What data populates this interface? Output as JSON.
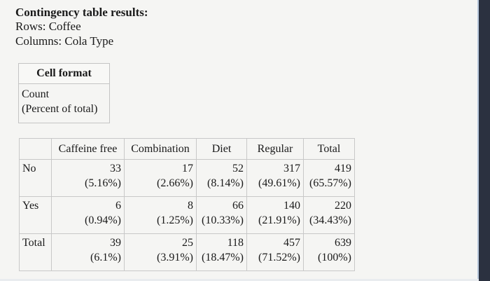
{
  "header": {
    "title": "Contingency table results:",
    "rows_line": "Rows: Coffee",
    "columns_line": "Columns: Cola Type"
  },
  "cell_format": {
    "title": "Cell format",
    "lines": [
      "Count",
      "(Percent of total)"
    ]
  },
  "table": {
    "columns": [
      "Caffeine free",
      "Combination",
      "Diet",
      "Regular",
      "Total"
    ],
    "rows": [
      {
        "label": "No",
        "cells": [
          {
            "count": 33,
            "percent": "(5.16%)"
          },
          {
            "count": 17,
            "percent": "(2.66%)"
          },
          {
            "count": 52,
            "percent": "(8.14%)"
          },
          {
            "count": 317,
            "percent": "(49.61%)"
          },
          {
            "count": 419,
            "percent": "(65.57%)"
          }
        ]
      },
      {
        "label": "Yes",
        "cells": [
          {
            "count": 6,
            "percent": "(0.94%)"
          },
          {
            "count": 8,
            "percent": "(1.25%)"
          },
          {
            "count": 66,
            "percent": "(10.33%)"
          },
          {
            "count": 140,
            "percent": "(21.91%)"
          },
          {
            "count": 220,
            "percent": "(34.43%)"
          }
        ]
      },
      {
        "label": "Total",
        "cells": [
          {
            "count": 39,
            "percent": "(6.1%)"
          },
          {
            "count": 25,
            "percent": "(3.91%)"
          },
          {
            "count": 118,
            "percent": "(18.47%)"
          },
          {
            "count": 457,
            "percent": "(71.52%)"
          },
          {
            "count": 639,
            "percent": "(100%)"
          }
        ]
      }
    ]
  }
}
